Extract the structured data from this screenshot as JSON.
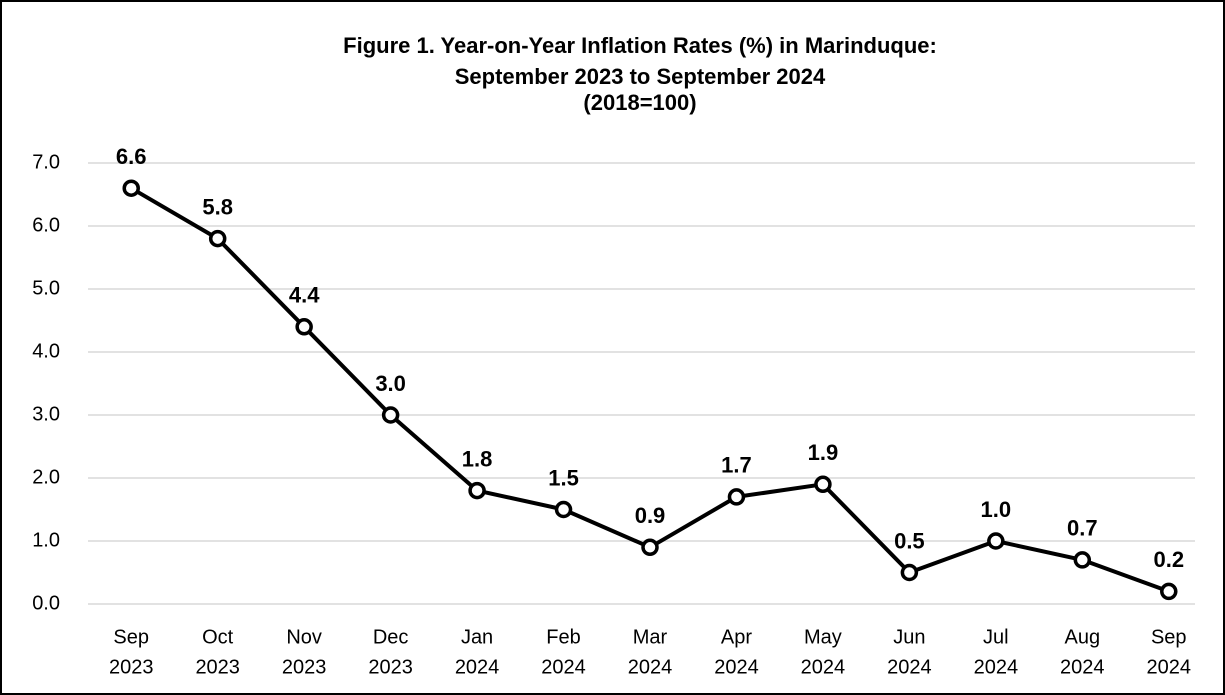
{
  "chart_data": {
    "type": "line",
    "title": [
      "Figure 1. Year-on-Year Inflation Rates (%) in Marinduque:",
      "September 2023 to September 2024",
      "(2018=100)"
    ],
    "categories": [
      [
        "Sep",
        "2023"
      ],
      [
        "Oct",
        "2023"
      ],
      [
        "Nov",
        "2023"
      ],
      [
        "Dec",
        "2023"
      ],
      [
        "Jan",
        "2024"
      ],
      [
        "Feb",
        "2024"
      ],
      [
        "Mar",
        "2024"
      ],
      [
        "Apr",
        "2024"
      ],
      [
        "May",
        "2024"
      ],
      [
        "Jun",
        "2024"
      ],
      [
        "Jul",
        "2024"
      ],
      [
        "Aug",
        "2024"
      ],
      [
        "Sep",
        "2024"
      ]
    ],
    "values": [
      6.6,
      5.8,
      4.4,
      3.0,
      1.8,
      1.5,
      0.9,
      1.7,
      1.9,
      0.5,
      1.0,
      0.7,
      0.2
    ],
    "value_labels": [
      "6.6",
      "5.8",
      "4.4",
      "3.0",
      "1.8",
      "1.5",
      "0.9",
      "1.7",
      "1.9",
      "0.5",
      "1.0",
      "0.7",
      "0.2"
    ],
    "color": "#000000",
    "ylim": [
      0,
      7
    ],
    "yticks": [
      {
        "value": 0,
        "label": "0.0"
      },
      {
        "value": 1,
        "label": "1.0"
      },
      {
        "value": 2,
        "label": "2.0"
      },
      {
        "value": 3,
        "label": "3.0"
      },
      {
        "value": 4,
        "label": "4.0"
      },
      {
        "value": 5,
        "label": "5.0"
      },
      {
        "value": 6,
        "label": "6.0"
      },
      {
        "value": 7,
        "label": "7.0"
      }
    ],
    "grid": true
  }
}
